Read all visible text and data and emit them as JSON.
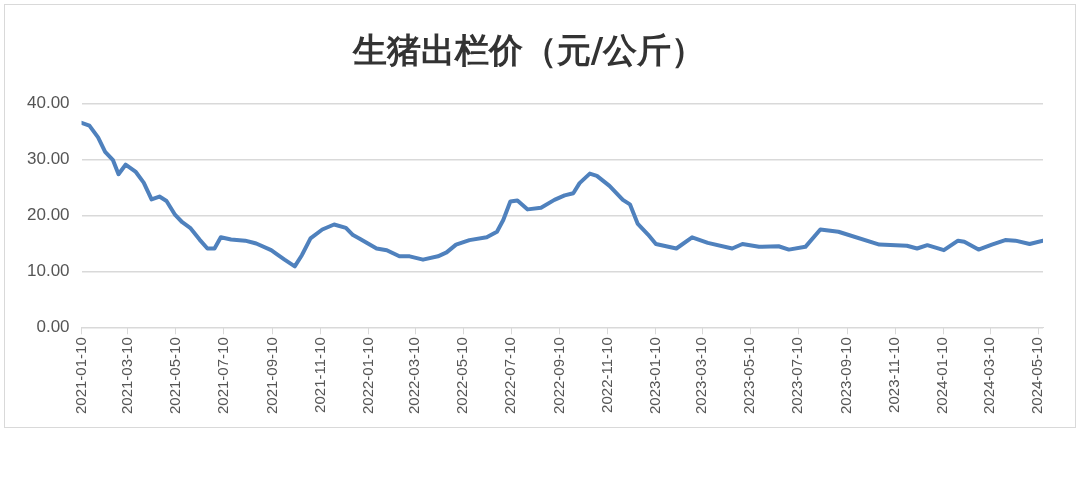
{
  "chart_data": {
    "type": "line",
    "title": "生猪出栏价（元/公斤）",
    "x": [
      "2021-01-10",
      "2021-01-20",
      "2021-01-31",
      "2021-02-09",
      "2021-02-19",
      "2021-02-26",
      "2021-03-07",
      "2021-03-20",
      "2021-03-30",
      "2021-04-09",
      "2021-04-19",
      "2021-04-28",
      "2021-05-09",
      "2021-05-18",
      "2021-05-28",
      "2021-06-09",
      "2021-06-19",
      "2021-06-28",
      "2021-07-06",
      "2021-07-19",
      "2021-08-06",
      "2021-08-20",
      "2021-09-08",
      "2021-09-25",
      "2021-10-08",
      "2021-10-17",
      "2021-10-28",
      "2021-11-12",
      "2021-11-27",
      "2021-12-12",
      "2021-12-21",
      "2021-12-29",
      "2022-01-20",
      "2022-02-02",
      "2022-02-18",
      "2022-03-03",
      "2022-03-20",
      "2022-04-08",
      "2022-04-19",
      "2022-05-01",
      "2022-05-18",
      "2022-06-09",
      "2022-06-22",
      "2022-06-30",
      "2022-07-09",
      "2022-07-18",
      "2022-07-31",
      "2022-08-17",
      "2022-09-03",
      "2022-09-16",
      "2022-09-27",
      "2022-10-05",
      "2022-10-18",
      "2022-10-27",
      "2022-11-12",
      "2022-11-29",
      "2022-12-08",
      "2022-12-18",
      "2022-12-31",
      "2023-01-10",
      "2023-02-05",
      "2023-02-25",
      "2023-03-17",
      "2023-04-17",
      "2023-04-30",
      "2023-05-21",
      "2023-06-15",
      "2023-06-28",
      "2023-07-19",
      "2023-08-07",
      "2023-08-30",
      "2023-10-21",
      "2023-11-25",
      "2023-12-08",
      "2023-12-21",
      "2024-01-11",
      "2024-01-29",
      "2024-02-06",
      "2024-02-24",
      "2024-03-12",
      "2024-03-29",
      "2024-04-11",
      "2024-04-29",
      "2024-05-16"
    ],
    "series": [
      {
        "color": "#4f81bd",
        "values": [
          36.6,
          36.1,
          34.0,
          31.4,
          29.9,
          27.4,
          29.1,
          27.8,
          25.9,
          22.9,
          23.4,
          22.6,
          20.1,
          18.8,
          17.8,
          15.7,
          14.1,
          14.1,
          16.1,
          15.7,
          15.5,
          15.0,
          13.8,
          12.1,
          10.9,
          12.9,
          15.9,
          17.5,
          18.4,
          17.8,
          16.5,
          15.9,
          14.1,
          13.8,
          12.7,
          12.7,
          12.1,
          12.7,
          13.4,
          14.8,
          15.6,
          16.1,
          17.1,
          19.2,
          22.5,
          22.7,
          21.1,
          21.4,
          22.8,
          23.6,
          24.0,
          25.8,
          27.5,
          27.1,
          25.3,
          22.8,
          22.0,
          18.5,
          16.6,
          14.9,
          14.1,
          16.1,
          15.1,
          14.1,
          14.9,
          14.4,
          14.5,
          13.9,
          14.4,
          17.5,
          17.1,
          14.8,
          14.6,
          14.1,
          14.7,
          13.8,
          15.5,
          15.3,
          13.9,
          14.8,
          15.6,
          15.5,
          14.9,
          15.5
        ]
      }
    ],
    "xlim": [
      "2021-01-10",
      "2024-05-16"
    ],
    "xticks": [
      "2021-01-10",
      "2021-03-10",
      "2021-05-10",
      "2021-07-10",
      "2021-09-10",
      "2021-11-10",
      "2022-01-10",
      "2022-03-10",
      "2022-05-10",
      "2022-07-10",
      "2022-09-10",
      "2022-11-10",
      "2023-01-10",
      "2023-03-10",
      "2023-05-10",
      "2023-07-10",
      "2023-09-10",
      "2023-11-10",
      "2024-01-10",
      "2024-03-10",
      "2024-05-10"
    ],
    "ylim": [
      0,
      40
    ],
    "yticks": [
      {
        "value": 0,
        "label": "0.00"
      },
      {
        "value": 10,
        "label": "10.00"
      },
      {
        "value": 20,
        "label": "20.00"
      },
      {
        "value": 30,
        "label": "30.00"
      },
      {
        "value": 40,
        "label": "40.00"
      }
    ],
    "grid": "y",
    "legend": false,
    "marker": "none",
    "line_style": "solid"
  }
}
